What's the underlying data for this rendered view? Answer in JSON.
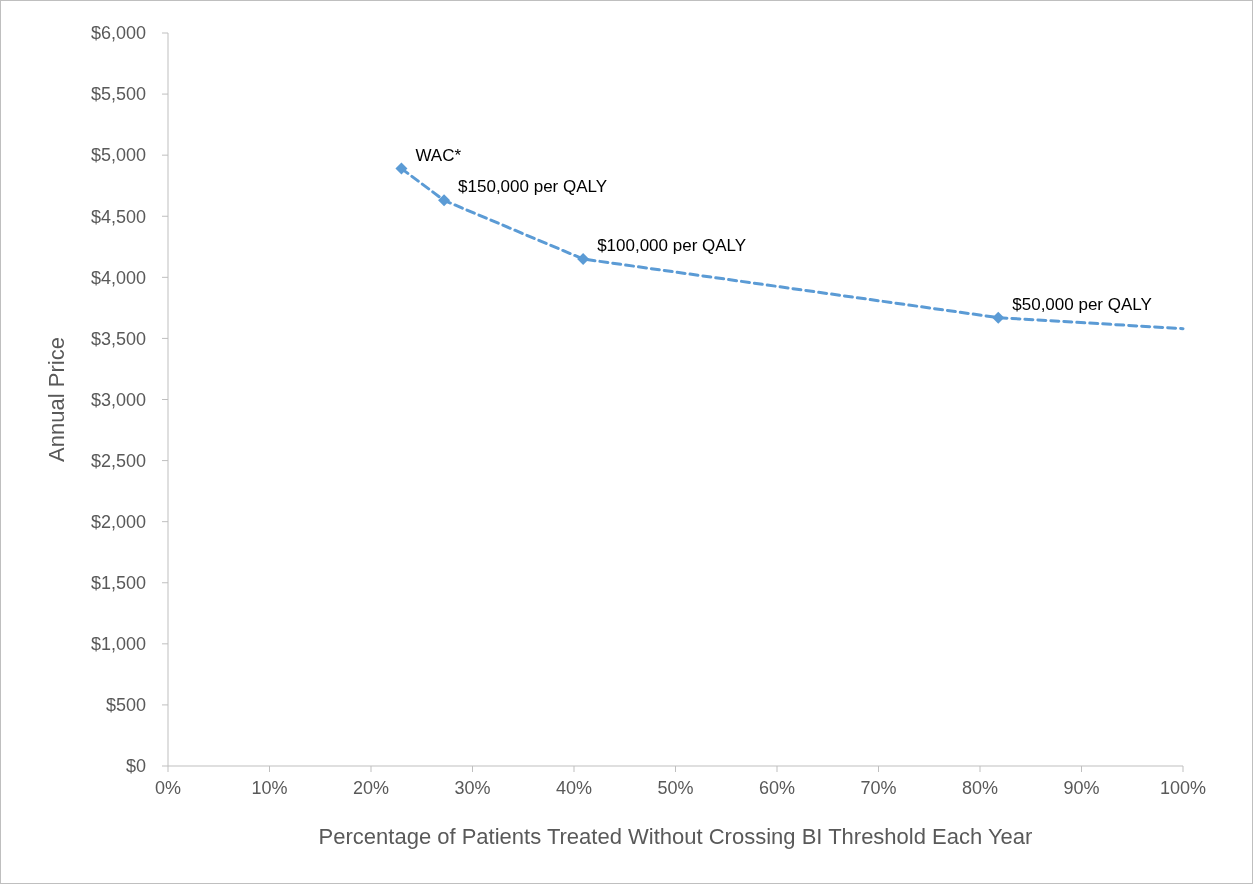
{
  "chart_data": {
    "type": "line",
    "xlabel": "Percentage of Patients Treated Without Crossing BI Threshold Each Year",
    "ylabel": "Annual Price",
    "series": [
      {
        "color": "#5b9bd5",
        "x": [
          23,
          27.2,
          40.9,
          81.8,
          100
        ],
        "values": [
          4890,
          4630,
          4150,
          3670,
          3580
        ],
        "line_style": "dashed",
        "marker": "none"
      },
      {
        "type": "scatter",
        "color": "#5b9bd5",
        "x": [
          23,
          27.2,
          40.9,
          81.8
        ],
        "values": [
          4890,
          4630,
          4150,
          3670
        ],
        "marker": "diamond"
      }
    ],
    "annotations": [
      {
        "text": "WAC*",
        "x": 23,
        "y": 4890
      },
      {
        "text": "$150,000 per QALY",
        "x": 27.2,
        "y": 4630
      },
      {
        "text": "$100,000 per QALY",
        "x": 40.9,
        "y": 4150
      },
      {
        "text": "$50,000 per QALY",
        "x": 81.8,
        "y": 3670
      }
    ],
    "xlim": [
      0,
      100
    ],
    "ylim": [
      0,
      6000
    ],
    "xticks": [
      {
        "value": 0,
        "label": "0%"
      },
      {
        "value": 10,
        "label": "10%"
      },
      {
        "value": 20,
        "label": "20%"
      },
      {
        "value": 30,
        "label": "30%"
      },
      {
        "value": 40,
        "label": "40%"
      },
      {
        "value": 50,
        "label": "50%"
      },
      {
        "value": 60,
        "label": "60%"
      },
      {
        "value": 70,
        "label": "70%"
      },
      {
        "value": 80,
        "label": "80%"
      },
      {
        "value": 90,
        "label": "90%"
      },
      {
        "value": 100,
        "label": "100%"
      }
    ],
    "yticks": [
      {
        "value": 0,
        "label": "$0"
      },
      {
        "value": 500,
        "label": "$500"
      },
      {
        "value": 1000,
        "label": "$1,000"
      },
      {
        "value": 1500,
        "label": "$1,500"
      },
      {
        "value": 2000,
        "label": "$2,000"
      },
      {
        "value": 2500,
        "label": "$2,500"
      },
      {
        "value": 3000,
        "label": "$3,000"
      },
      {
        "value": 3500,
        "label": "$3,500"
      },
      {
        "value": 4000,
        "label": "$4,000"
      },
      {
        "value": 4500,
        "label": "$4,500"
      },
      {
        "value": 5000,
        "label": "$5,000"
      },
      {
        "value": 5500,
        "label": "$5,500"
      },
      {
        "value": 6000,
        "label": "$6,000"
      }
    ],
    "grid": false
  }
}
